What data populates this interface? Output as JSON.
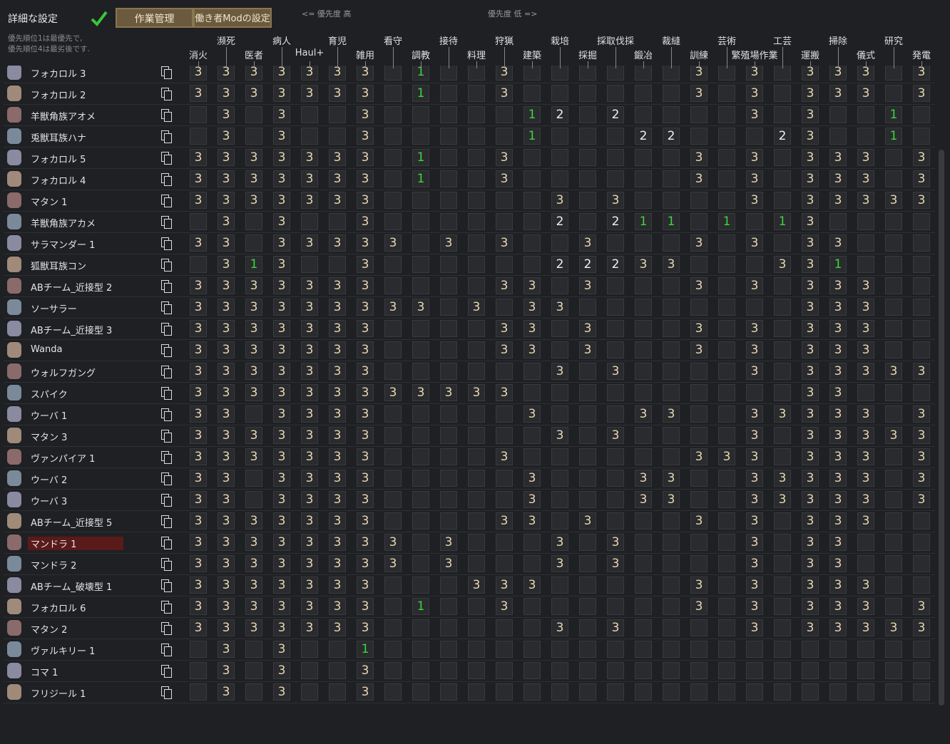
{
  "header": {
    "title": "詳細な設定",
    "note": [
      "優先順位1は最優先で,",
      "優先順位4は最劣後です."
    ],
    "tabs": [
      "作業管理",
      "働き者Modの設定"
    ],
    "priority_high": "<= 優先度 高",
    "priority_low": "優先度 低 =>"
  },
  "columns": [
    "消火",
    "瀕死",
    "医者",
    "病人",
    "Haul+",
    "育児",
    "雑用",
    "看守",
    "調教",
    "接待",
    "料理",
    "狩猟",
    "建築",
    "栽培",
    "採掘",
    "採取伐採",
    "鍛冶",
    "裁縫",
    "訓練",
    "芸術",
    "繁殖場作業",
    "工芸",
    "運搬",
    "掃除",
    "儀式",
    "研究",
    "発電"
  ],
  "rows": [
    {
      "name": "フォカロル 3",
      "cells": [
        3,
        3,
        3,
        3,
        3,
        3,
        3,
        null,
        1,
        null,
        null,
        3,
        null,
        null,
        null,
        null,
        null,
        null,
        3,
        null,
        3,
        null,
        3,
        3,
        3,
        null,
        3
      ]
    },
    {
      "name": "フォカロル 2",
      "cells": [
        3,
        3,
        3,
        3,
        3,
        3,
        3,
        null,
        1,
        null,
        null,
        3,
        null,
        null,
        null,
        null,
        null,
        null,
        3,
        null,
        3,
        null,
        3,
        3,
        3,
        null,
        3
      ]
    },
    {
      "name": "羊獣角族アオメ",
      "cells": [
        null,
        3,
        null,
        3,
        null,
        null,
        3,
        null,
        null,
        null,
        null,
        null,
        1,
        2,
        null,
        2,
        null,
        null,
        null,
        null,
        3,
        null,
        3,
        null,
        null,
        1,
        null
      ]
    },
    {
      "name": "兎獣耳族ハナ",
      "cells": [
        null,
        3,
        null,
        3,
        null,
        null,
        3,
        null,
        null,
        null,
        null,
        null,
        1,
        null,
        null,
        null,
        2,
        2,
        null,
        null,
        null,
        2,
        3,
        null,
        null,
        1,
        null
      ]
    },
    {
      "name": "フォカロル 5",
      "cells": [
        3,
        3,
        3,
        3,
        3,
        3,
        3,
        null,
        1,
        null,
        null,
        3,
        null,
        null,
        null,
        null,
        null,
        null,
        3,
        null,
        3,
        null,
        3,
        3,
        3,
        null,
        3
      ]
    },
    {
      "name": "フォカロル 4",
      "cells": [
        3,
        3,
        3,
        3,
        3,
        3,
        3,
        null,
        1,
        null,
        null,
        3,
        null,
        null,
        null,
        null,
        null,
        null,
        3,
        null,
        3,
        null,
        3,
        3,
        3,
        null,
        3
      ]
    },
    {
      "name": "マタン 1",
      "cells": [
        3,
        3,
        3,
        3,
        3,
        3,
        3,
        null,
        null,
        null,
        null,
        null,
        null,
        3,
        null,
        3,
        null,
        null,
        null,
        null,
        3,
        null,
        3,
        3,
        3,
        3,
        3
      ]
    },
    {
      "name": "羊獣角族アカメ",
      "cells": [
        null,
        3,
        null,
        3,
        null,
        null,
        3,
        null,
        null,
        null,
        null,
        null,
        null,
        2,
        null,
        2,
        1,
        1,
        null,
        1,
        null,
        1,
        3,
        null,
        null,
        null,
        null
      ]
    },
    {
      "name": "サラマンダー 1",
      "cells": [
        3,
        3,
        null,
        3,
        3,
        3,
        3,
        3,
        null,
        3,
        null,
        3,
        null,
        null,
        3,
        null,
        null,
        null,
        3,
        null,
        3,
        null,
        3,
        3,
        null,
        null,
        null
      ]
    },
    {
      "name": "狐獣耳族コン",
      "cells": [
        null,
        3,
        1,
        3,
        null,
        null,
        3,
        null,
        null,
        null,
        null,
        null,
        null,
        2,
        2,
        2,
        3,
        3,
        null,
        null,
        null,
        3,
        3,
        1,
        null,
        null,
        null
      ]
    },
    {
      "name": "ABチーム_近接型 2",
      "cells": [
        3,
        3,
        3,
        3,
        3,
        3,
        3,
        null,
        null,
        null,
        null,
        3,
        3,
        null,
        3,
        null,
        null,
        null,
        3,
        null,
        3,
        null,
        3,
        3,
        3,
        null,
        null
      ]
    },
    {
      "name": "ソーサラー",
      "cells": [
        3,
        3,
        3,
        3,
        3,
        3,
        3,
        3,
        3,
        null,
        3,
        null,
        3,
        3,
        null,
        null,
        null,
        null,
        null,
        null,
        null,
        null,
        3,
        3,
        3,
        null,
        null
      ]
    },
    {
      "name": "ABチーム_近接型 3",
      "cells": [
        3,
        3,
        3,
        3,
        3,
        3,
        3,
        null,
        null,
        null,
        null,
        3,
        3,
        null,
        3,
        null,
        null,
        null,
        3,
        null,
        3,
        null,
        3,
        3,
        3,
        null,
        null
      ]
    },
    {
      "name": "Wanda",
      "cells": [
        3,
        3,
        3,
        3,
        3,
        3,
        3,
        null,
        null,
        null,
        null,
        3,
        3,
        null,
        3,
        null,
        null,
        null,
        3,
        null,
        3,
        null,
        3,
        3,
        3,
        null,
        null
      ]
    },
    {
      "name": "ウォルフガング",
      "cells": [
        3,
        3,
        3,
        3,
        3,
        3,
        3,
        null,
        null,
        null,
        null,
        null,
        null,
        3,
        null,
        3,
        null,
        null,
        null,
        null,
        3,
        null,
        3,
        3,
        3,
        3,
        3
      ]
    },
    {
      "name": "スパイク",
      "cells": [
        3,
        3,
        3,
        3,
        3,
        3,
        3,
        3,
        3,
        3,
        3,
        3,
        null,
        null,
        null,
        null,
        null,
        null,
        null,
        null,
        null,
        null,
        3,
        3,
        null,
        null,
        null
      ]
    },
    {
      "name": "ウーバ 1",
      "cells": [
        3,
        3,
        null,
        3,
        3,
        3,
        3,
        null,
        null,
        null,
        null,
        null,
        3,
        null,
        null,
        null,
        3,
        3,
        null,
        null,
        3,
        3,
        3,
        3,
        3,
        null,
        3
      ]
    },
    {
      "name": "マタン 3",
      "cells": [
        3,
        3,
        3,
        3,
        3,
        3,
        3,
        null,
        null,
        null,
        null,
        null,
        null,
        3,
        null,
        3,
        null,
        null,
        null,
        null,
        3,
        null,
        3,
        3,
        3,
        3,
        3
      ]
    },
    {
      "name": "ヴァンパイア 1",
      "cells": [
        3,
        3,
        3,
        3,
        3,
        3,
        3,
        null,
        null,
        null,
        null,
        3,
        null,
        null,
        null,
        null,
        null,
        null,
        3,
        3,
        3,
        null,
        3,
        3,
        3,
        null,
        3
      ]
    },
    {
      "name": "ウーバ 2",
      "cells": [
        3,
        3,
        null,
        3,
        3,
        3,
        3,
        null,
        null,
        null,
        null,
        null,
        3,
        null,
        null,
        null,
        3,
        3,
        null,
        null,
        3,
        3,
        3,
        3,
        3,
        null,
        3
      ]
    },
    {
      "name": "ウーバ 3",
      "cells": [
        3,
        3,
        null,
        3,
        3,
        3,
        3,
        null,
        null,
        null,
        null,
        null,
        3,
        null,
        null,
        null,
        3,
        3,
        null,
        null,
        3,
        3,
        3,
        3,
        3,
        null,
        3
      ]
    },
    {
      "name": "ABチーム_近接型 5",
      "cells": [
        3,
        3,
        3,
        3,
        3,
        3,
        3,
        null,
        null,
        null,
        null,
        3,
        3,
        null,
        3,
        null,
        null,
        null,
        3,
        null,
        3,
        null,
        3,
        3,
        3,
        null,
        null
      ]
    },
    {
      "name": "マンドラ 1",
      "cells": [
        3,
        3,
        3,
        3,
        3,
        3,
        3,
        3,
        null,
        3,
        null,
        null,
        null,
        3,
        null,
        3,
        null,
        null,
        null,
        null,
        3,
        null,
        3,
        3,
        null,
        null,
        null
      ]
    },
    {
      "name": "マンドラ 2",
      "cells": [
        3,
        3,
        3,
        3,
        3,
        3,
        3,
        3,
        null,
        3,
        null,
        null,
        null,
        3,
        null,
        3,
        null,
        null,
        null,
        null,
        3,
        null,
        3,
        3,
        null,
        null,
        null
      ]
    },
    {
      "name": "ABチーム_破壊型 1",
      "cells": [
        3,
        3,
        3,
        3,
        3,
        3,
        3,
        null,
        null,
        null,
        3,
        3,
        3,
        null,
        null,
        null,
        null,
        null,
        3,
        null,
        3,
        null,
        3,
        3,
        3,
        null,
        null
      ]
    },
    {
      "name": "フォカロル 6",
      "cells": [
        3,
        3,
        3,
        3,
        3,
        3,
        3,
        null,
        1,
        null,
        null,
        3,
        null,
        null,
        null,
        null,
        null,
        null,
        3,
        null,
        3,
        null,
        3,
        3,
        3,
        null,
        3
      ]
    },
    {
      "name": "マタン 2",
      "cells": [
        3,
        3,
        3,
        3,
        3,
        3,
        3,
        null,
        null,
        null,
        null,
        null,
        null,
        3,
        null,
        3,
        null,
        null,
        null,
        null,
        3,
        null,
        3,
        3,
        3,
        3,
        3
      ]
    },
    {
      "name": "ヴァルキリー 1",
      "cells": [
        null,
        3,
        null,
        3,
        null,
        null,
        1,
        null,
        null,
        null,
        null,
        null,
        null,
        null,
        null,
        null,
        null,
        null,
        null,
        null,
        null,
        null,
        null,
        null,
        null,
        null,
        null
      ]
    },
    {
      "name": "コマ 1",
      "cells": [
        null,
        3,
        null,
        3,
        null,
        null,
        3,
        null,
        null,
        null,
        null,
        null,
        null,
        null,
        null,
        null,
        null,
        null,
        null,
        null,
        null,
        null,
        null,
        null,
        null,
        null,
        null
      ]
    },
    {
      "name": "フリジール 1",
      "cells": [
        null,
        3,
        null,
        3,
        null,
        null,
        3,
        null,
        null,
        null,
        null,
        null,
        null,
        null,
        null,
        null,
        null,
        null,
        null,
        null,
        null,
        null,
        null,
        null,
        null,
        null,
        null
      ]
    }
  ]
}
